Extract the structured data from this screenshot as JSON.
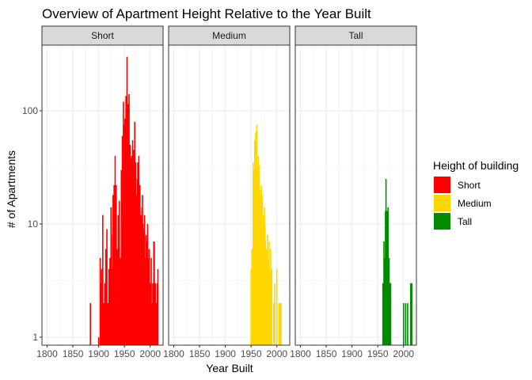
{
  "chart_data": {
    "type": "bar",
    "title": "Overview of Apartment Height Relative to the Year Built",
    "xlabel": "Year Built",
    "ylabel": "# of Apartments",
    "x_scale": "linear",
    "y_scale": "log10",
    "xlim": [
      1790,
      2025
    ],
    "ylim": [
      0.85,
      380
    ],
    "x_ticks": [
      1800,
      1850,
      1900,
      1950,
      2000
    ],
    "x_tick_labels": [
      "1800",
      "1850",
      "1900",
      "1950",
      "2000"
    ],
    "y_ticks": [
      1,
      10,
      100
    ],
    "y_tick_labels": [
      "1",
      "10",
      "100"
    ],
    "grid": true,
    "legend": {
      "title": "Height of building",
      "position": "right",
      "entries": [
        {
          "label": "Short",
          "color": "#FF0000"
        },
        {
          "label": "Medium",
          "color": "#FFD700"
        },
        {
          "label": "Tall",
          "color": "#008B00"
        }
      ]
    },
    "facets": [
      {
        "label": "Short",
        "color": "#FF0000",
        "x": [
          1884,
          1900,
          1903,
          1905,
          1906,
          1908,
          1910,
          1912,
          1914,
          1916,
          1918,
          1920,
          1922,
          1924,
          1925,
          1926,
          1927,
          1928,
          1929,
          1930,
          1931,
          1932,
          1934,
          1936,
          1938,
          1940,
          1942,
          1944,
          1946,
          1947,
          1948,
          1949,
          1950,
          1951,
          1952,
          1953,
          1954,
          1955,
          1956,
          1957,
          1958,
          1959,
          1960,
          1961,
          1962,
          1963,
          1964,
          1965,
          1966,
          1967,
          1968,
          1969,
          1970,
          1971,
          1972,
          1973,
          1974,
          1975,
          1976,
          1977,
          1978,
          1979,
          1980,
          1981,
          1982,
          1983,
          1984,
          1985,
          1986,
          1987,
          1988,
          1989,
          1990,
          1991,
          1992,
          1993,
          1994,
          1995,
          1996,
          1997,
          1998,
          1999,
          2000,
          2001,
          2002,
          2003,
          2004,
          2005,
          2006,
          2007,
          2008,
          2010,
          2012,
          2014,
          2015
        ],
        "values": [
          2,
          1,
          5,
          3,
          4,
          12,
          2,
          3,
          6,
          9,
          2,
          4,
          5,
          14,
          8,
          3,
          4,
          18,
          12,
          22,
          8,
          40,
          22,
          6,
          12,
          16,
          5,
          30,
          60,
          11,
          120,
          18,
          75,
          85,
          20,
          135,
          45,
          300,
          60,
          115,
          32,
          140,
          25,
          50,
          35,
          38,
          40,
          30,
          55,
          25,
          45,
          30,
          80,
          22,
          35,
          18,
          12,
          25,
          35,
          20,
          40,
          15,
          22,
          10,
          12,
          6,
          14,
          18,
          10,
          8,
          9,
          12,
          4,
          5,
          8,
          3,
          7,
          10,
          5,
          4,
          6,
          3,
          2,
          3,
          5,
          2,
          1,
          3,
          2,
          7,
          7,
          3,
          2,
          3,
          4
        ]
      },
      {
        "label": "Medium",
        "color": "#FFD700",
        "x": [
          1950,
          1952,
          1954,
          1955,
          1956,
          1957,
          1958,
          1959,
          1960,
          1961,
          1962,
          1963,
          1964,
          1965,
          1966,
          1967,
          1968,
          1969,
          1970,
          1971,
          1972,
          1973,
          1974,
          1975,
          1976,
          1977,
          1978,
          1980,
          1982,
          1984,
          1985,
          1986,
          1988,
          1990,
          1994,
          1996,
          2000,
          2004,
          2006,
          2008
        ],
        "values": [
          4,
          6,
          35,
          18,
          30,
          55,
          22,
          65,
          45,
          75,
          28,
          30,
          40,
          25,
          33,
          20,
          18,
          15,
          22,
          12,
          18,
          10,
          12,
          8,
          14,
          10,
          7,
          6,
          8,
          5,
          7,
          4,
          6,
          4,
          2,
          3,
          4,
          2,
          2,
          2
        ]
      },
      {
        "label": "Tall",
        "color": "#008B00",
        "x": [
          1960,
          1962,
          1963,
          1964,
          1965,
          1966,
          1967,
          1968,
          1969,
          1970,
          1972,
          1974,
          1975,
          2000,
          2004,
          2008,
          2014,
          2016
        ],
        "values": [
          3,
          7,
          4,
          5,
          13,
          25,
          13,
          13,
          6,
          14,
          5,
          3,
          3,
          2,
          2,
          2,
          3,
          3
        ]
      }
    ]
  }
}
